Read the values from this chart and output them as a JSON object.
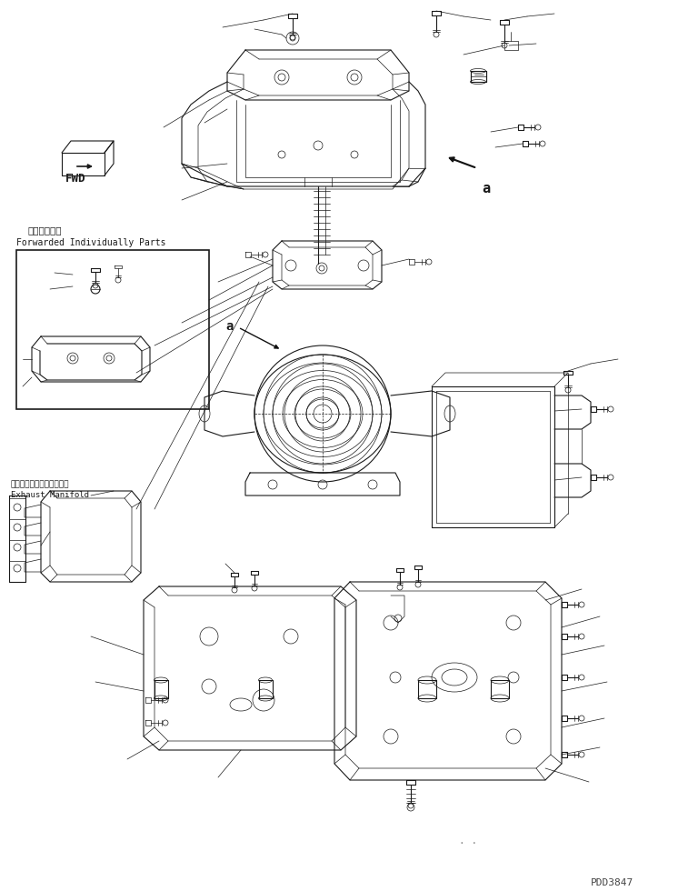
{
  "bg_color": "#ffffff",
  "line_color": "#1a1a1a",
  "fig_width": 7.46,
  "fig_height": 9.8,
  "dpi": 100,
  "title_code": "PDD3847",
  "fwd_label": "FWD",
  "japanese_label": "単品発送部品",
  "english_label": "Forwarded Individually Parts",
  "exhaust_jp": "エキゾーストマニホールド",
  "exhaust_en": "Exhaust Manifold",
  "label_a": "a"
}
